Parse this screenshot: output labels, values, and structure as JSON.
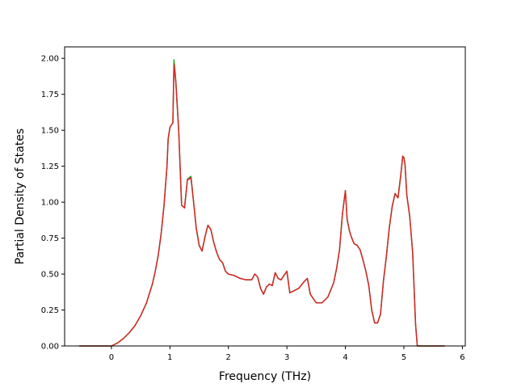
{
  "chart_data": {
    "type": "line",
    "title": "",
    "xlabel": "Frequency (THz)",
    "ylabel": "Partial Density of States",
    "xlim": [
      -0.8,
      6.05
    ],
    "ylim": [
      0.0,
      2.08
    ],
    "xticks": [
      0,
      1,
      2,
      3,
      4,
      5,
      6
    ],
    "xtick_labels": [
      "0",
      "1",
      "2",
      "3",
      "4",
      "5",
      "6"
    ],
    "yticks": [
      0.0,
      0.25,
      0.5,
      0.75,
      1.0,
      1.25,
      1.5,
      1.75,
      2.0
    ],
    "ytick_labels": [
      "0.00",
      "0.25",
      "0.50",
      "0.75",
      "1.00",
      "1.25",
      "1.50",
      "1.75",
      "2.00"
    ],
    "grid": false,
    "legend": "none",
    "series": [
      {
        "color": "#2ca02c",
        "x": [
          -0.55,
          0.0,
          0.1,
          0.2,
          0.3,
          0.4,
          0.5,
          0.6,
          0.7,
          0.75,
          0.8,
          0.85,
          0.9,
          0.95,
          0.97,
          1.0,
          1.03,
          1.05,
          1.07,
          1.1,
          1.15,
          1.2,
          1.25,
          1.3,
          1.33,
          1.36,
          1.4,
          1.45,
          1.5,
          1.55,
          1.6,
          1.65,
          1.7,
          1.75,
          1.8,
          1.85,
          1.9,
          1.95,
          2.0,
          2.1,
          2.2,
          2.3,
          2.4,
          2.45,
          2.5,
          2.55,
          2.6,
          2.65,
          2.7,
          2.75,
          2.8,
          2.85,
          2.9,
          2.95,
          3.0,
          3.05,
          3.1,
          3.2,
          3.3,
          3.35,
          3.4,
          3.5,
          3.6,
          3.7,
          3.8,
          3.85,
          3.9,
          3.95,
          4.0,
          4.03,
          4.07,
          4.1,
          4.15,
          4.2,
          4.25,
          4.3,
          4.35,
          4.4,
          4.45,
          4.5,
          4.55,
          4.6,
          4.65,
          4.7,
          4.75,
          4.8,
          4.85,
          4.9,
          4.95,
          4.98,
          5.0,
          5.02,
          5.05,
          5.1,
          5.15,
          5.2,
          5.23,
          5.5,
          5.7
        ],
        "y": [
          0.0,
          0.0,
          0.02,
          0.05,
          0.09,
          0.14,
          0.21,
          0.3,
          0.43,
          0.52,
          0.63,
          0.78,
          0.98,
          1.25,
          1.44,
          1.52,
          1.54,
          1.55,
          1.99,
          1.85,
          1.5,
          0.98,
          0.96,
          1.16,
          1.17,
          1.18,
          1.02,
          0.82,
          0.7,
          0.66,
          0.76,
          0.84,
          0.81,
          0.72,
          0.65,
          0.6,
          0.58,
          0.52,
          0.5,
          0.49,
          0.47,
          0.46,
          0.46,
          0.5,
          0.48,
          0.4,
          0.36,
          0.41,
          0.43,
          0.42,
          0.51,
          0.47,
          0.46,
          0.49,
          0.52,
          0.37,
          0.38,
          0.4,
          0.45,
          0.47,
          0.36,
          0.3,
          0.3,
          0.34,
          0.44,
          0.54,
          0.67,
          0.92,
          1.08,
          0.88,
          0.8,
          0.76,
          0.71,
          0.7,
          0.67,
          0.6,
          0.52,
          0.42,
          0.25,
          0.16,
          0.16,
          0.22,
          0.45,
          0.62,
          0.82,
          0.97,
          1.06,
          1.03,
          1.2,
          1.32,
          1.31,
          1.26,
          1.05,
          0.9,
          0.65,
          0.15,
          0.0,
          0.0,
          0.0
        ]
      },
      {
        "color": "#d62728",
        "x": [
          -0.55,
          0.0,
          0.1,
          0.2,
          0.3,
          0.4,
          0.5,
          0.6,
          0.7,
          0.75,
          0.8,
          0.85,
          0.9,
          0.95,
          0.97,
          1.0,
          1.03,
          1.05,
          1.07,
          1.1,
          1.15,
          1.2,
          1.25,
          1.3,
          1.33,
          1.36,
          1.4,
          1.45,
          1.5,
          1.55,
          1.6,
          1.65,
          1.7,
          1.75,
          1.8,
          1.85,
          1.9,
          1.95,
          2.0,
          2.1,
          2.2,
          2.3,
          2.4,
          2.45,
          2.5,
          2.55,
          2.6,
          2.65,
          2.7,
          2.75,
          2.8,
          2.85,
          2.9,
          2.95,
          3.0,
          3.05,
          3.1,
          3.2,
          3.3,
          3.35,
          3.4,
          3.5,
          3.6,
          3.7,
          3.8,
          3.85,
          3.9,
          3.95,
          4.0,
          4.03,
          4.07,
          4.1,
          4.15,
          4.2,
          4.25,
          4.3,
          4.35,
          4.4,
          4.45,
          4.5,
          4.55,
          4.6,
          4.65,
          4.7,
          4.75,
          4.8,
          4.85,
          4.9,
          4.95,
          4.98,
          5.0,
          5.02,
          5.05,
          5.1,
          5.15,
          5.2,
          5.23,
          5.5,
          5.7
        ],
        "y": [
          0.0,
          0.0,
          0.02,
          0.05,
          0.09,
          0.14,
          0.21,
          0.3,
          0.43,
          0.52,
          0.63,
          0.78,
          0.98,
          1.25,
          1.44,
          1.52,
          1.54,
          1.55,
          1.96,
          1.84,
          1.5,
          0.98,
          0.96,
          1.16,
          1.16,
          1.17,
          1.02,
          0.82,
          0.7,
          0.66,
          0.76,
          0.84,
          0.81,
          0.72,
          0.65,
          0.6,
          0.58,
          0.52,
          0.5,
          0.49,
          0.47,
          0.46,
          0.46,
          0.5,
          0.48,
          0.4,
          0.36,
          0.41,
          0.43,
          0.42,
          0.51,
          0.47,
          0.46,
          0.49,
          0.52,
          0.37,
          0.38,
          0.4,
          0.45,
          0.47,
          0.36,
          0.3,
          0.3,
          0.34,
          0.44,
          0.54,
          0.67,
          0.92,
          1.08,
          0.88,
          0.8,
          0.76,
          0.71,
          0.7,
          0.67,
          0.6,
          0.52,
          0.42,
          0.25,
          0.16,
          0.16,
          0.22,
          0.45,
          0.62,
          0.82,
          0.97,
          1.06,
          1.03,
          1.2,
          1.32,
          1.31,
          1.26,
          1.05,
          0.9,
          0.65,
          0.15,
          0.0,
          0.0,
          0.0
        ]
      }
    ]
  }
}
